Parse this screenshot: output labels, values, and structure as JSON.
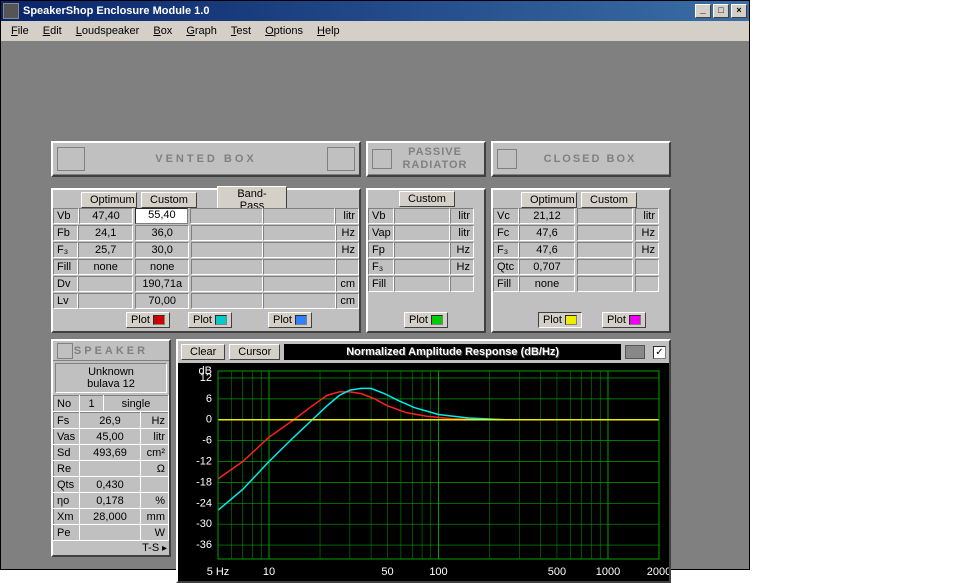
{
  "window": {
    "title": "SpeakerShop Enclosure Module 1.0"
  },
  "menu": [
    "File",
    "Edit",
    "Loudspeaker",
    "Box",
    "Graph",
    "Test",
    "Options",
    "Help"
  ],
  "vented": {
    "title": "VENTED BOX",
    "tabs": [
      "Optimum",
      "Custom",
      "Band-Pass"
    ],
    "rows": [
      {
        "l": "Vb",
        "v1": "47,40",
        "v2": "55,40",
        "v2_input": true,
        "u": "litr"
      },
      {
        "l": "Fb",
        "v1": "24,1",
        "v2": "36,0",
        "u": "Hz"
      },
      {
        "l": "F₃",
        "v1": "25,7",
        "v2": "30,0",
        "u": "Hz"
      },
      {
        "l": "Fill",
        "v1": "none",
        "v2": "none",
        "u": ""
      },
      {
        "l": "Dv",
        "v1": "",
        "v2": "190,71а",
        "u": "cm"
      },
      {
        "l": "Lv",
        "v1": "",
        "v2": "70,00",
        "u": "cm"
      }
    ],
    "plot1_color": "#cc0000",
    "plot2_color": "#00cccc",
    "plot3_color": "#3080ff"
  },
  "passive": {
    "title": "PASSIVE RADIATOR",
    "tabs": [
      "Custom"
    ],
    "rows": [
      {
        "l": "Vb",
        "u": "litr"
      },
      {
        "l": "Vap",
        "u": "litr"
      },
      {
        "l": "Fp",
        "u": "Hz"
      },
      {
        "l": "F₃",
        "u": "Hz"
      },
      {
        "l": "Fill",
        "u": ""
      }
    ],
    "plot_color": "#00cc00"
  },
  "closed": {
    "title": "CLOSED BOX",
    "tabs": [
      "Optimum",
      "Custom"
    ],
    "rows": [
      {
        "l": "Vc",
        "v1": "21,12",
        "u": "litr"
      },
      {
        "l": "Fc",
        "v1": "47,6",
        "u": "Hz"
      },
      {
        "l": "F₃",
        "v1": "47,6",
        "u": "Hz"
      },
      {
        "l": "Qtc",
        "v1": "0,707",
        "u": ""
      },
      {
        "l": "Fill",
        "v1": "none",
        "u": ""
      }
    ],
    "plot1_color": "#eeee00",
    "plot2_color": "#ee00ee"
  },
  "speaker": {
    "title": "SPEAKER",
    "name_line1": "Unknown",
    "name_line2": "bulava 12",
    "no_label": "No",
    "no_val": "1",
    "mode": "single",
    "rows": [
      {
        "l": "Fs",
        "v": "26,9",
        "u": "Hz"
      },
      {
        "l": "Vas",
        "v": "45,00",
        "u": "litr"
      },
      {
        "l": "Sd",
        "v": "493,69",
        "u": "cm²"
      },
      {
        "l": "Re",
        "v": "",
        "u": "Ω"
      },
      {
        "l": "Qts",
        "v": "0,430",
        "u": ""
      },
      {
        "l": "ηo",
        "v": "0,178",
        "u": "%"
      },
      {
        "l": "Xm",
        "v": "28,000",
        "u": "mm"
      },
      {
        "l": "Pe",
        "v": "",
        "u": "W"
      }
    ],
    "footer": "T-S"
  },
  "chart": {
    "title": "Normalized Amplitude Response (dB/Hz)",
    "buttons": [
      "Clear",
      "Cursor"
    ],
    "y_label": "dB",
    "y_ticks": [
      12,
      6,
      0,
      -6,
      -12,
      -18,
      -24,
      -30,
      -36
    ],
    "x_label_prefix": "5 Hz",
    "x_ticks": [
      5,
      10,
      50,
      100,
      500,
      1000,
      2000
    ],
    "xlim": [
      5,
      2000
    ],
    "ylim": [
      -40,
      14
    ],
    "bg": "#000000",
    "grid": "#00a000",
    "series": [
      {
        "color": "#ff2020",
        "pts": [
          [
            5,
            -17
          ],
          [
            7,
            -12
          ],
          [
            10,
            -5
          ],
          [
            14,
            0
          ],
          [
            18,
            4
          ],
          [
            22,
            7
          ],
          [
            26,
            8
          ],
          [
            30,
            8
          ],
          [
            35,
            7.5
          ],
          [
            42,
            6
          ],
          [
            50,
            4
          ],
          [
            65,
            2
          ],
          [
            85,
            1
          ],
          [
            120,
            0.3
          ],
          [
            200,
            0
          ],
          [
            2000,
            0
          ]
        ]
      },
      {
        "color": "#00eeee",
        "pts": [
          [
            5,
            -26
          ],
          [
            7,
            -20
          ],
          [
            10,
            -12
          ],
          [
            14,
            -5
          ],
          [
            18,
            0
          ],
          [
            22,
            4
          ],
          [
            26,
            7
          ],
          [
            30,
            8.5
          ],
          [
            35,
            9
          ],
          [
            40,
            9
          ],
          [
            48,
            7.5
          ],
          [
            58,
            5.5
          ],
          [
            72,
            3.5
          ],
          [
            100,
            1.5
          ],
          [
            150,
            0.5
          ],
          [
            250,
            0
          ],
          [
            2000,
            0
          ]
        ]
      },
      {
        "color": "#eeee00",
        "pts": [
          [
            5,
            0
          ],
          [
            2000,
            0
          ]
        ]
      }
    ]
  },
  "labels": {
    "plot": "Plot"
  }
}
